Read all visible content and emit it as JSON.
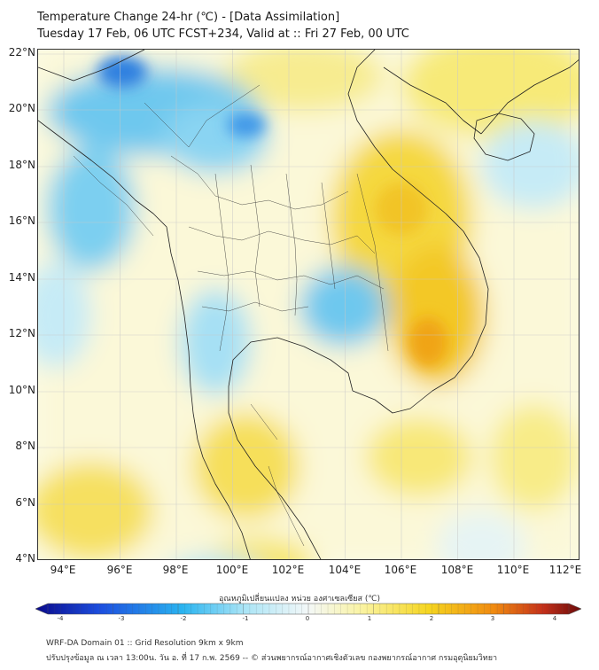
{
  "header": {
    "title_line1": "Temperature Change 24-hr (℃) - [Data Assimilation]",
    "title_line2": "Tuesday 17 Feb, 06 UTC FCST+234, Valid at :: Fri 27 Feb, 00 UTC"
  },
  "map": {
    "lat_labels": [
      "22°N",
      "20°N",
      "18°N",
      "16°N",
      "14°N",
      "12°N",
      "10°N",
      "8°N",
      "6°N",
      "4°N"
    ],
    "lon_labels": [
      "94°E",
      "96°E",
      "98°E",
      "100°E",
      "102°E",
      "104°E",
      "106°E",
      "108°E",
      "110°E",
      "112°E"
    ],
    "lat_range": [
      4,
      22.2
    ],
    "lon_range": [
      93,
      112.3
    ]
  },
  "colorbar": {
    "label": "อุณหภูมิเปลี่ยนแปลง หน่วย องศาเซลเซียส (℃)",
    "ticks": [
      "-4",
      "-3",
      "-2",
      "-1",
      "0",
      "1",
      "2",
      "3",
      "4"
    ],
    "min": -4,
    "max": 4,
    "colors": {
      "dark_blue": "#0a0a8c",
      "blue": "#1c4fe0",
      "light_blue": "#2ab4f0",
      "cyan_pale": "#a8e4f6",
      "white": "#f4f8f8",
      "pale_yellow": "#faf3a0",
      "yellow": "#f5d520",
      "orange": "#f08a10",
      "red": "#c4301a",
      "dark_red": "#6a0a0a"
    }
  },
  "footer": {
    "line1": "WRF-DA Domain 01 :: Grid Resolution 9km x 9km",
    "line2": "ปรับปรุงข้อมูล ณ เวลา 13:00น. วัน อ. ที่ 17 ก.พ. 2569 -- © ส่วนพยากรณ์อากาศเชิงตัวเลข กองพยากรณ์อากาศ กรมอุตุนิยมวิทยา"
  }
}
